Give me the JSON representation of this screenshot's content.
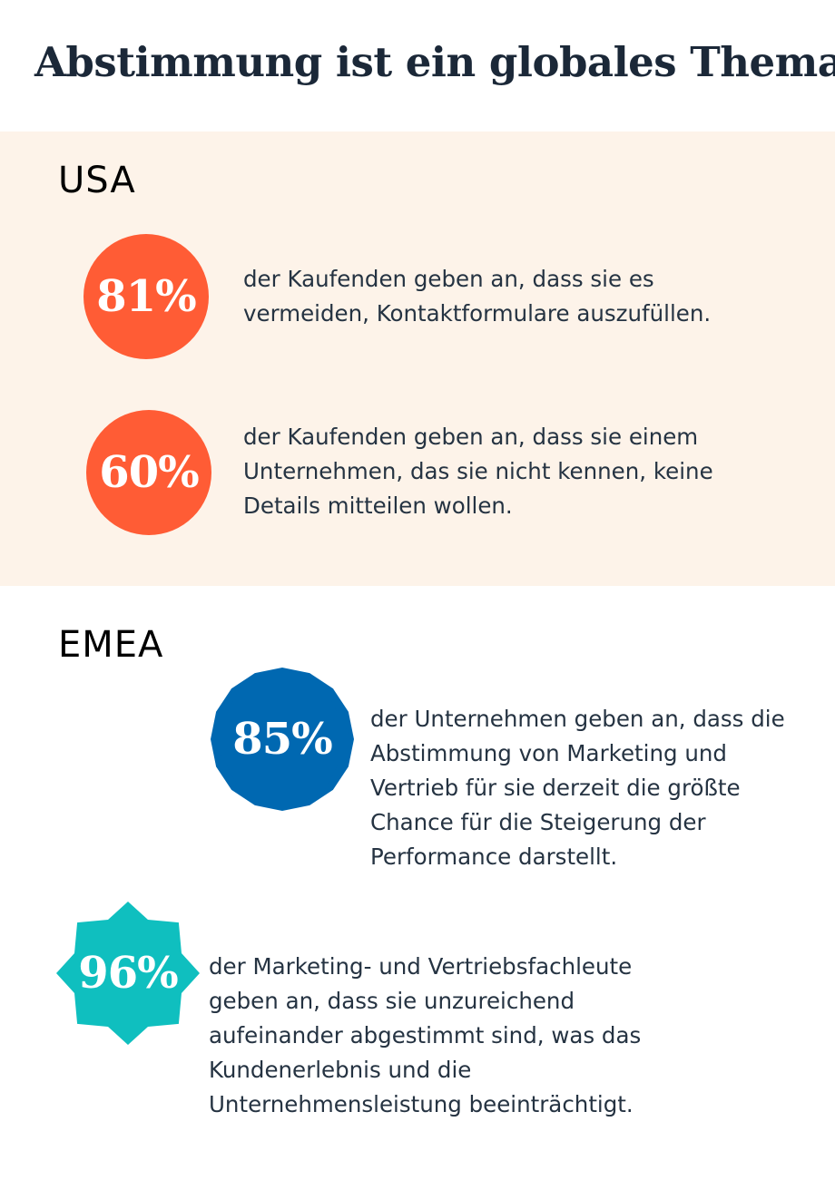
{
  "title": "Abstimmung ist ein globales Thema",
  "colors": {
    "usa_band": "#fdf3e9",
    "orange": "#ff5c35",
    "blue": "#0068b1",
    "teal": "#0fbfbf",
    "heading": "#1b2838"
  },
  "usa": {
    "label": "USA",
    "stats": [
      {
        "value": "81%",
        "text": "der Kaufenden geben an, dass sie es vermeiden, Kontaktformulare auszufüllen."
      },
      {
        "value": "60%",
        "text": "der Kaufenden geben an, dass sie einem Unternehmen, das sie nicht kennen, keine Details mitteilen wollen."
      }
    ]
  },
  "emea": {
    "label": "EMEA",
    "stats": [
      {
        "value": "85%",
        "text": "der Unternehmen geben an, dass die Abstimmung von Marketing und Vertrieb für sie derzeit die größte Chance für die Steigerung der Performance darstellt."
      },
      {
        "value": "96%",
        "text": "der Marketing- und Vertriebsfachleute geben an, dass sie unzureichend aufeinander abgestimmt sind, was das Kundenerlebnis und die Unternehmensleistung beeinträchtigt."
      }
    ]
  }
}
